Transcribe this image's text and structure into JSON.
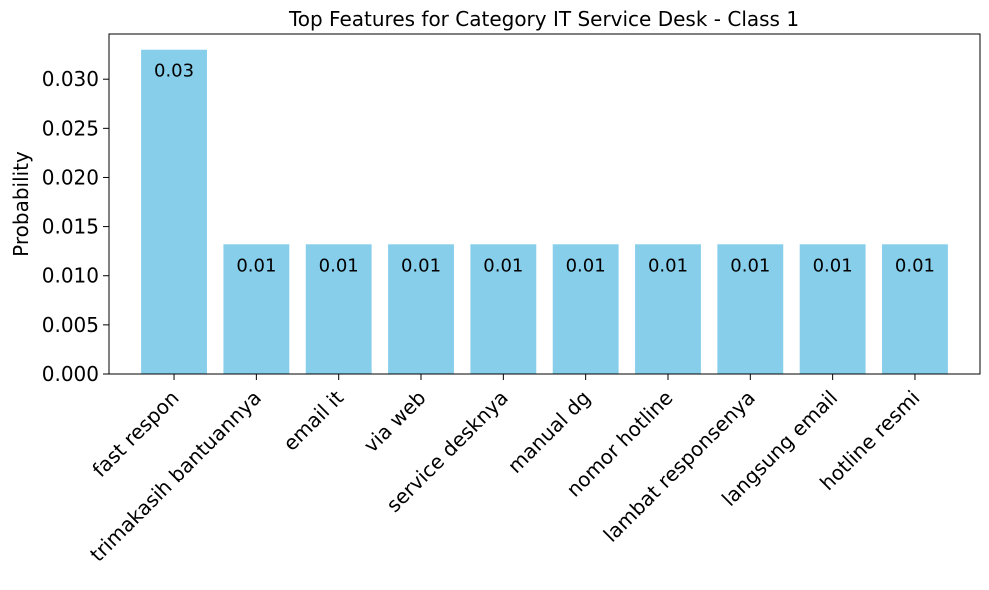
{
  "chart_data": {
    "type": "bar",
    "title": "Top Features for Category IT Service Desk - Class 1",
    "xlabel": "",
    "ylabel": "Probability",
    "categories": [
      "fast respon",
      "trimakasih bantuannya",
      "email it",
      "via web",
      "service desknya",
      "manual dg",
      "nomor hotline",
      "lambat responsenya",
      "langsung email",
      "hotline resmi"
    ],
    "values": [
      0.033,
      0.0132,
      0.0132,
      0.0132,
      0.0132,
      0.0132,
      0.0132,
      0.0132,
      0.0132,
      0.0132
    ],
    "data_labels": [
      "0.03",
      "0.01",
      "0.01",
      "0.01",
      "0.01",
      "0.01",
      "0.01",
      "0.01",
      "0.01",
      "0.01"
    ],
    "ylim": [
      0,
      0.0346
    ],
    "yticks": [
      0.0,
      0.005,
      0.01,
      0.015,
      0.02,
      0.025,
      0.03
    ],
    "ytick_labels": [
      "0.000",
      "0.005",
      "0.010",
      "0.015",
      "0.020",
      "0.025",
      "0.030"
    ],
    "bar_color": "#87CEEB",
    "grid": false,
    "legend": "none"
  }
}
